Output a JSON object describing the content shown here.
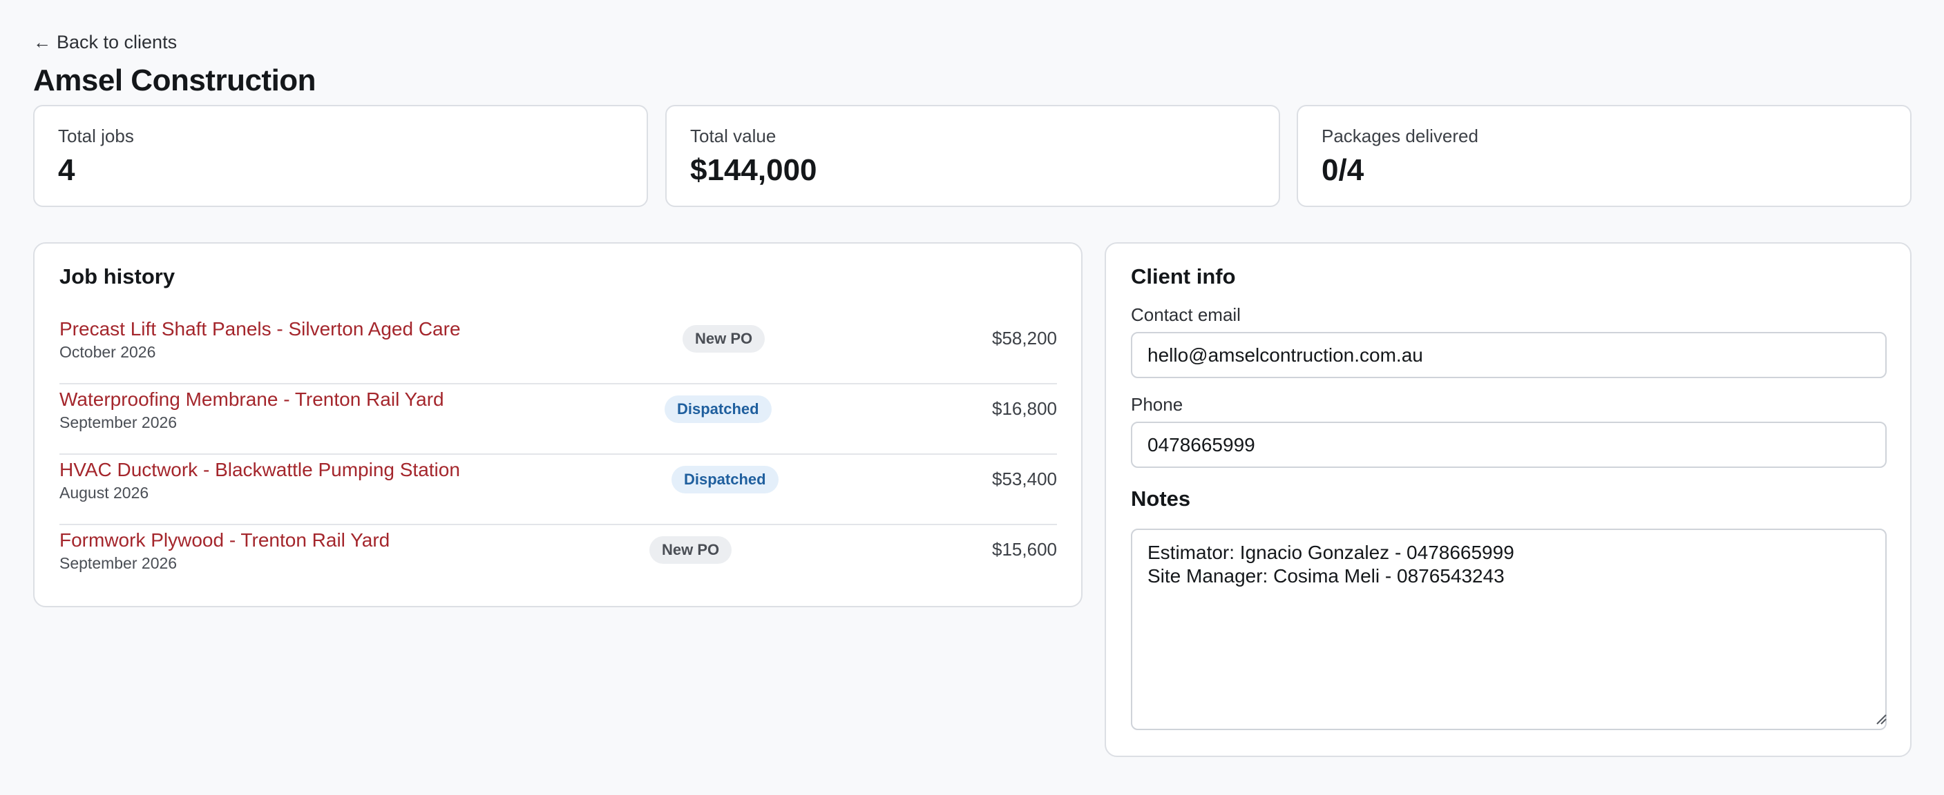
{
  "nav": {
    "back_label": "Back to clients"
  },
  "client": {
    "name": "Amsel Construction"
  },
  "stats": [
    {
      "label": "Total jobs",
      "value": "4"
    },
    {
      "label": "Total value",
      "value": "$144,000"
    },
    {
      "label": "Packages delivered",
      "value": "0/4"
    }
  ],
  "job_history": {
    "heading": "Job history",
    "jobs": [
      {
        "title": "Precast Lift Shaft Panels - Silverton Aged Care",
        "date": "October 2026",
        "status": "New PO",
        "amount": "$58,200"
      },
      {
        "title": "Waterproofing Membrane - Trenton Rail Yard",
        "date": "September 2026",
        "status": "Dispatched",
        "amount": "$16,800"
      },
      {
        "title": "HVAC Ductwork - Blackwattle Pumping Station",
        "date": "August 2026",
        "status": "Dispatched",
        "amount": "$53,400"
      },
      {
        "title": "Formwork Plywood - Trenton Rail Yard",
        "date": "September 2026",
        "status": "New PO",
        "amount": "$15,600"
      }
    ]
  },
  "client_info": {
    "heading": "Client info",
    "email_label": "Contact email",
    "email_value": "hello@amselcontruction.com.au",
    "phone_label": "Phone",
    "phone_value": "0478665999",
    "notes_heading": "Notes",
    "notes_value": "Estimator: Ignacio Gonzalez - 0478665999\nSite Manager: Cosima Meli - 0876543243"
  },
  "colors": {
    "job_link": "#a4262c",
    "badge_new_po_bg": "#eceef1",
    "badge_dispatched_bg": "#e4effa",
    "badge_dispatched_text": "#1f5f9e"
  }
}
